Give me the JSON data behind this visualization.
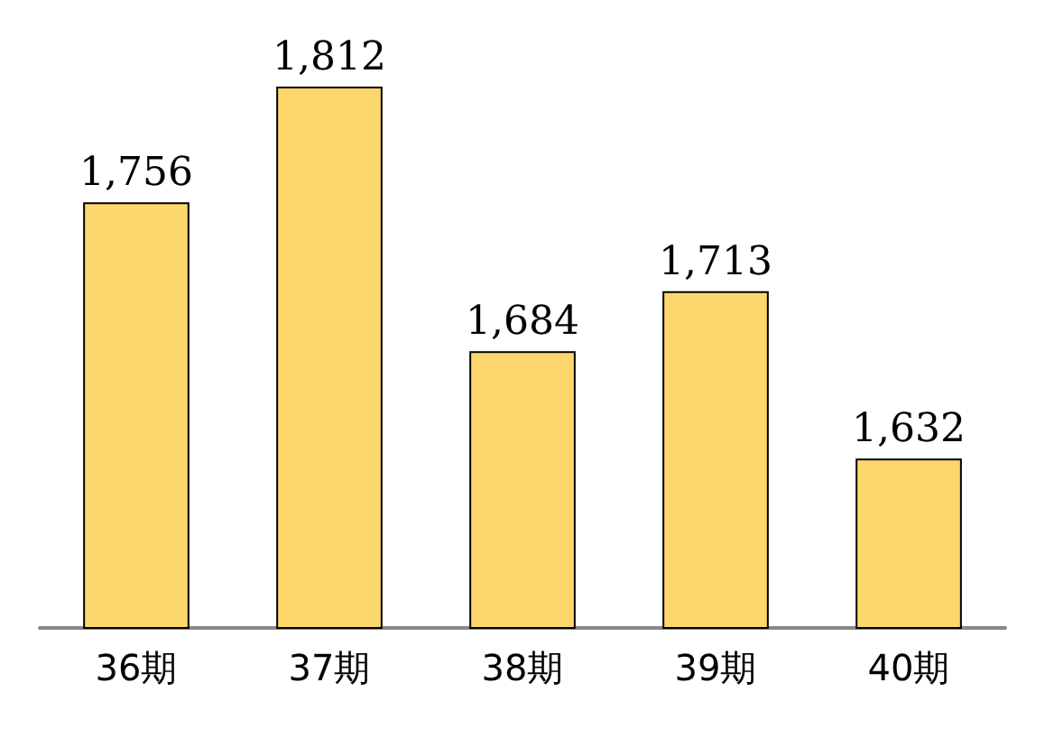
{
  "chart_data": {
    "type": "bar",
    "categories": [
      "36期",
      "37期",
      "38期",
      "39期",
      "40期"
    ],
    "values": [
      1756,
      1812,
      1684,
      1713,
      1632
    ],
    "color": "#fdd76b",
    "value_labels": [
      "1,756",
      "1,812",
      "1,684",
      "1,713",
      "1,632"
    ],
    "ylim": [
      1550,
      1812
    ],
    "tick_labels": "x",
    "grid": false
  }
}
